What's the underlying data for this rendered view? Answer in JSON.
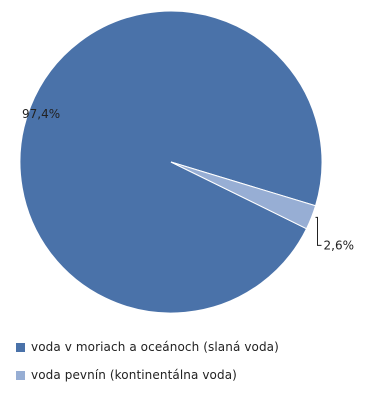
{
  "chart_data": {
    "type": "pie",
    "title": "",
    "slices": [
      {
        "label": "voda v moriach a oceánoch (slaná voda)",
        "value": 97.4,
        "display": "97,4%",
        "color": "#4a72a9"
      },
      {
        "label": "voda pevnín (kontinentálna voda)",
        "value": 2.6,
        "display": "2,6%",
        "color": "#97aed4"
      }
    ],
    "legend_position": "bottom-left",
    "data_labels": true
  },
  "legend": {
    "items": [
      {
        "label": "voda v moriach a oceánoch (slaná voda)",
        "color": "#4a72a9"
      },
      {
        "label": "voda pevnín (kontinentálna voda)",
        "color": "#97aed4"
      }
    ]
  }
}
